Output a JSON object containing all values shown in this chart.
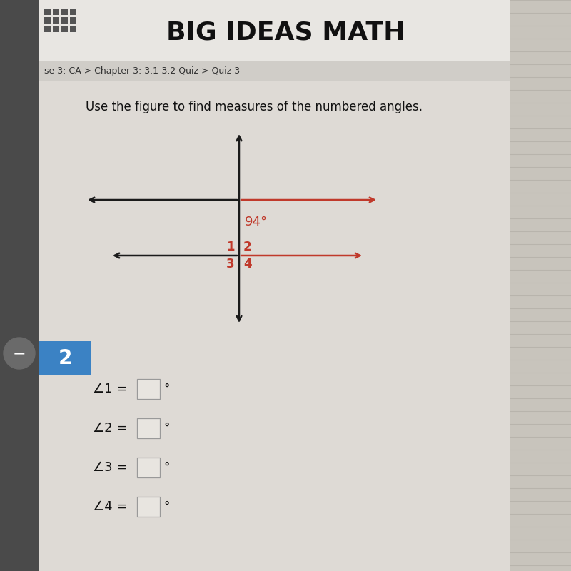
{
  "title": "BIG IDEAS MATH",
  "breadcrumb": "se 3: CA > Chapter 3: 3.1-3.2 Quiz > Quiz 3",
  "instruction": "Use the figure to find measures of the numbered angles.",
  "angle_label": "94°",
  "angle_color": "#c0392b",
  "bg_color": "#d8d5d0",
  "header_bg": "#e8e6e2",
  "breadcrumb_bg": "#d0cdc8",
  "content_bg": "#dedad5",
  "line_color": "#1a1a1a",
  "arrow_color": "#c0392b",
  "number_color": "#c0392b",
  "question_number": "2",
  "question_bg": "#3b82c4",
  "question_text_color": "#ffffff",
  "fig_width": 8.0,
  "fig_height": 8.0,
  "dpi": 100,
  "left_strip_color": "#4a4a4a",
  "circle_color": "#6a6a6a",
  "right_strip_color": "#c8c4bc"
}
